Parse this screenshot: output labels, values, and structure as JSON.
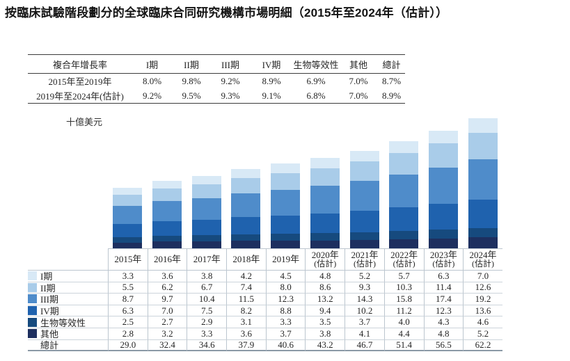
{
  "title": "按臨床試驗階段劃分的全球臨床合同研究機構市場明細（2015年至2024年（估計））",
  "cagr_table": {
    "header": [
      "複合年增長率",
      "I期",
      "II期",
      "III期",
      "IV期",
      "生物等效性",
      "其他",
      "總計"
    ],
    "rows": [
      {
        "label": "2015年至2019年",
        "values": [
          "8.0%",
          "9.8%",
          "9.2%",
          "8.9%",
          "6.9%",
          "7.0%",
          "8.7%"
        ]
      },
      {
        "label": "2019年至2024年(估計)",
        "values": [
          "9.2%",
          "9.5%",
          "9.3%",
          "9.1%",
          "6.8%",
          "7.0%",
          "8.9%"
        ]
      }
    ]
  },
  "chart_data": {
    "type": "bar",
    "stacked": true,
    "title": "按臨床試驗階段劃分的全球臨床合同研究機構市場明細",
    "ylabel": "十億美元",
    "xlabel": "",
    "ylim": [
      0,
      63.7
    ],
    "grid": false,
    "legend_position": "left-table-rows",
    "categories": [
      {
        "label": "2015年",
        "sublabel": ""
      },
      {
        "label": "2016年",
        "sublabel": ""
      },
      {
        "label": "2017年",
        "sublabel": ""
      },
      {
        "label": "2018年",
        "sublabel": ""
      },
      {
        "label": "2019年",
        "sublabel": ""
      },
      {
        "label": "2020年",
        "sublabel": "(估計)"
      },
      {
        "label": "2021年",
        "sublabel": "(估計)"
      },
      {
        "label": "2022年",
        "sublabel": "(估計)"
      },
      {
        "label": "2023年",
        "sublabel": "(估計)"
      },
      {
        "label": "2024年",
        "sublabel": "(估計)"
      }
    ],
    "stack_order_bottom_to_top": [
      "其他",
      "生物等效性",
      "IV期",
      "III期",
      "II期",
      "I期"
    ],
    "series": [
      {
        "name": "I期",
        "color": "#d8e9f6",
        "values": [
          3.3,
          3.6,
          3.8,
          4.2,
          4.5,
          4.8,
          5.2,
          5.7,
          6.3,
          7.0
        ]
      },
      {
        "name": "II期",
        "color": "#a9cce9",
        "values": [
          5.5,
          6.2,
          6.7,
          7.4,
          8.0,
          8.6,
          9.3,
          10.3,
          11.4,
          12.6
        ]
      },
      {
        "name": "III期",
        "color": "#4f8cca",
        "values": [
          8.7,
          9.7,
          10.4,
          11.5,
          12.3,
          13.2,
          14.3,
          15.8,
          17.4,
          19.2
        ]
      },
      {
        "name": "IV期",
        "color": "#1f62ae",
        "values": [
          6.3,
          7.0,
          7.5,
          8.2,
          8.8,
          9.4,
          10.2,
          11.2,
          12.3,
          13.6
        ]
      },
      {
        "name": "生物等效性",
        "color": "#164a7e",
        "values": [
          2.5,
          2.7,
          2.9,
          3.1,
          3.3,
          3.5,
          3.7,
          4.0,
          4.3,
          4.6
        ]
      },
      {
        "name": "其他",
        "color": "#1d2f5f",
        "values": [
          2.8,
          3.2,
          3.3,
          3.6,
          3.7,
          3.8,
          4.1,
          4.4,
          4.8,
          5.2
        ]
      }
    ],
    "totals": {
      "name": "總計",
      "values": [
        29.0,
        32.4,
        34.6,
        37.9,
        40.6,
        43.2,
        46.7,
        51.4,
        56.5,
        62.2
      ]
    }
  }
}
